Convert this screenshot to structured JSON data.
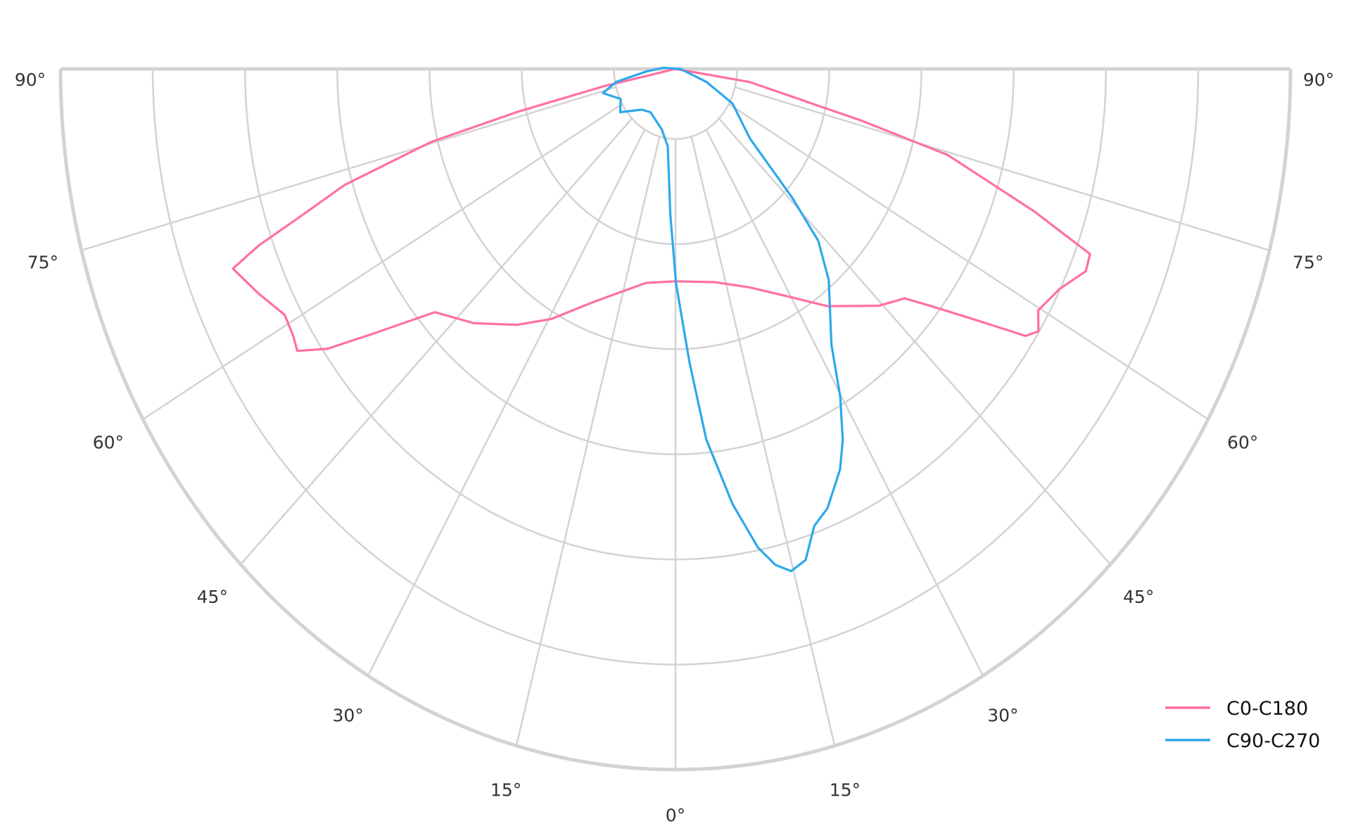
{
  "chart_data": {
    "type": "polar-line",
    "title": "",
    "angle_unit": "degrees",
    "angle_zero": "bottom",
    "angle_range": [
      -90,
      90
    ],
    "angle_ticks": [
      -90,
      -75,
      -60,
      -45,
      -30,
      -15,
      0,
      15,
      30,
      45,
      60,
      75,
      90
    ],
    "angle_tick_labels": [
      "90°",
      "75°",
      "60°",
      "45°",
      "30°",
      "15°",
      "0°",
      "15°",
      "30°",
      "45°",
      "60°",
      "75°",
      "90°"
    ],
    "radial_range": [
      0,
      1
    ],
    "radial_gridlines": [
      0.1,
      0.25,
      0.4,
      0.55,
      0.7,
      0.85,
      1.0
    ],
    "radial_tick_labels": [],
    "grid": true,
    "legend_position": "bottom-right",
    "series": [
      {
        "name": "C0-C180",
        "color": "#ff6fa5",
        "points": [
          [
            -90,
            0
          ],
          [
            -78,
            0.12
          ],
          [
            -76.6,
            0.265
          ],
          [
            -75.3,
            0.411
          ],
          [
            -72.9,
            0.563
          ],
          [
            -71.0,
            0.643
          ],
          [
            -69.6,
            0.723
          ],
          [
            -68.4,
            0.774
          ],
          [
            -64.7,
            0.75
          ],
          [
            -61.1,
            0.726
          ],
          [
            -58.5,
            0.729
          ],
          [
            -56.8,
            0.735
          ],
          [
            -54.8,
            0.693
          ],
          [
            -52.6,
            0.624
          ],
          [
            -48.4,
            0.523
          ],
          [
            -42.1,
            0.489
          ],
          [
            -35.2,
            0.447
          ],
          [
            -29.5,
            0.41
          ],
          [
            -21.6,
            0.357
          ],
          [
            -8.9,
            0.309
          ],
          [
            0,
            0.303
          ],
          [
            11.9,
            0.311
          ],
          [
            21.1,
            0.334
          ],
          [
            30.3,
            0.378
          ],
          [
            36.1,
            0.419
          ],
          [
            44.4,
            0.473
          ],
          [
            48.7,
            0.496
          ],
          [
            50.8,
            0.535
          ],
          [
            53.6,
            0.602
          ],
          [
            56.2,
            0.685
          ],
          [
            57.6,
            0.699
          ],
          [
            59.7,
            0.683
          ],
          [
            63.3,
            0.699
          ],
          [
            66.6,
            0.727
          ],
          [
            68.6,
            0.724
          ],
          [
            70.8,
            0.617
          ],
          [
            74.5,
            0.459
          ],
          [
            76.3,
            0.311
          ],
          [
            81.2,
            0.122
          ],
          [
            90,
            0
          ]
        ]
      },
      {
        "name": "C90-C270",
        "color": "#2ea8ea",
        "points": [
          [
            0.2,
            0.307
          ],
          [
            -2.3,
            0.209
          ],
          [
            -6.5,
            0.111
          ],
          [
            -14.6,
            0.089
          ],
          [
            -33.4,
            0.074
          ],
          [
            -43.4,
            0.08
          ],
          [
            -55.5,
            0.109
          ],
          [
            -64.4,
            0.099
          ],
          [
            -73.7,
            0.123
          ],
          [
            -79.2,
            0.098
          ],
          [
            -85.6,
            0.048
          ],
          [
            -95,
            0.02
          ],
          [
            90,
            0.008
          ],
          [
            69.8,
            0.054
          ],
          [
            62,
            0.105
          ],
          [
            50.7,
            0.156
          ],
          [
            45.9,
            0.265
          ],
          [
            43.4,
            0.338
          ],
          [
            39.6,
            0.391
          ],
          [
            32.8,
            0.468
          ],
          [
            29.8,
            0.539
          ],
          [
            27.2,
            0.595
          ],
          [
            25.1,
            0.631
          ],
          [
            21.5,
            0.674
          ],
          [
            19.1,
            0.69
          ],
          [
            16.8,
            0.732
          ],
          [
            14.7,
            0.741
          ],
          [
            12.9,
            0.726
          ],
          [
            11.1,
            0.696
          ],
          [
            8.5,
            0.628
          ],
          [
            5.4,
            0.531
          ],
          [
            3.1,
            0.419
          ],
          [
            0.2,
            0.307
          ]
        ]
      }
    ],
    "grid_color": "#d3d3d3"
  }
}
